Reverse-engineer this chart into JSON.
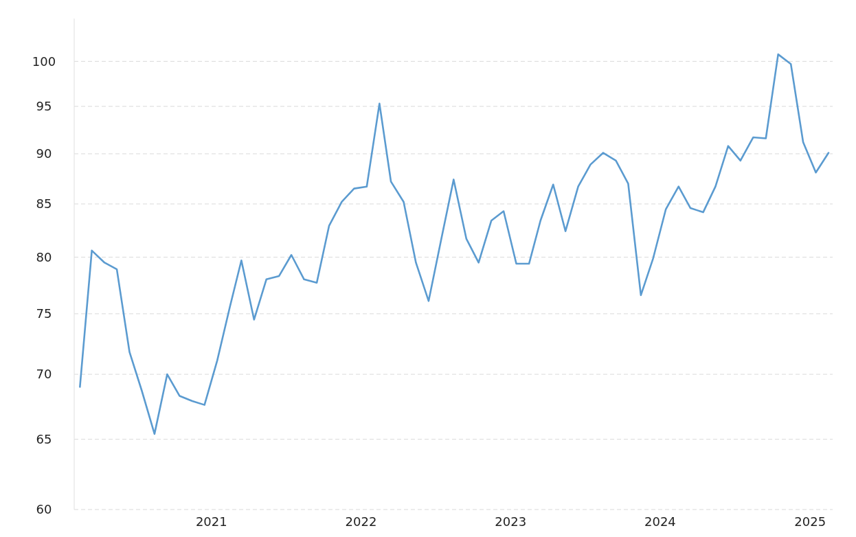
{
  "chart_data": {
    "type": "line",
    "log": true,
    "x": [
      "2020-02-15",
      "2020-03-15",
      "2020-04-15",
      "2020-05-15",
      "2020-06-15",
      "2020-07-15",
      "2020-08-15",
      "2020-09-15",
      "2020-10-15",
      "2020-11-15",
      "2020-12-15",
      "2021-01-15",
      "2021-02-15",
      "2021-03-15",
      "2021-04-15",
      "2021-05-15",
      "2021-06-15",
      "2021-07-15",
      "2021-08-15",
      "2021-09-15",
      "2021-10-15",
      "2021-11-15",
      "2021-12-15",
      "2022-01-15",
      "2022-02-15",
      "2022-03-15",
      "2022-04-15",
      "2022-05-15",
      "2022-06-15",
      "2022-07-15",
      "2022-08-15",
      "2022-09-15",
      "2022-10-15",
      "2022-11-15",
      "2022-12-15",
      "2023-01-15",
      "2023-02-15",
      "2023-03-15",
      "2023-04-15",
      "2023-05-15",
      "2023-06-15",
      "2023-07-15",
      "2023-08-15",
      "2023-09-15",
      "2023-10-15",
      "2023-11-15",
      "2023-12-15",
      "2024-01-15",
      "2024-02-15",
      "2024-03-15",
      "2024-04-15",
      "2024-05-15",
      "2024-06-15",
      "2024-07-15",
      "2024-08-15",
      "2024-09-15",
      "2024-10-15",
      "2024-11-15",
      "2024-12-15",
      "2025-01-15",
      "2025-02-15"
    ],
    "series": [
      {
        "color": "#5b9bd0",
        "values": [
          69.0,
          80.6,
          79.5,
          78.9,
          71.8,
          68.7,
          65.4,
          70.0,
          68.3,
          67.9,
          67.6,
          71.1,
          75.6,
          79.7,
          74.5,
          78.0,
          78.3,
          80.2,
          78.0,
          77.7,
          82.9,
          85.2,
          86.5,
          86.7,
          95.3,
          87.2,
          85.2,
          79.5,
          76.1,
          81.5,
          87.4,
          81.7,
          79.5,
          83.4,
          84.3,
          79.4,
          79.4,
          83.4,
          86.9,
          82.4,
          86.7,
          88.9,
          90.1,
          89.3,
          87.0,
          76.6,
          79.9,
          84.5,
          86.7,
          84.6,
          84.2,
          86.7,
          90.8,
          89.3,
          91.7,
          91.6,
          100.8,
          99.7,
          91.2,
          88.1,
          90.1
        ]
      }
    ],
    "xlim": [
      "2020-02-01",
      "2025-02-25"
    ],
    "xticks": [
      {
        "value": "2021-01-01",
        "label": "2021"
      },
      {
        "value": "2022-01-01",
        "label": "2022"
      },
      {
        "value": "2023-01-01",
        "label": "2023"
      },
      {
        "value": "2024-01-01",
        "label": "2024"
      },
      {
        "value": "2025-01-01",
        "label": "2025"
      }
    ],
    "ylim": [
      60,
      105
    ],
    "yticks": [
      60,
      65,
      70,
      75,
      80,
      85,
      90,
      95,
      100
    ],
    "grid": "y",
    "marker": "none",
    "line_style": "solid"
  }
}
